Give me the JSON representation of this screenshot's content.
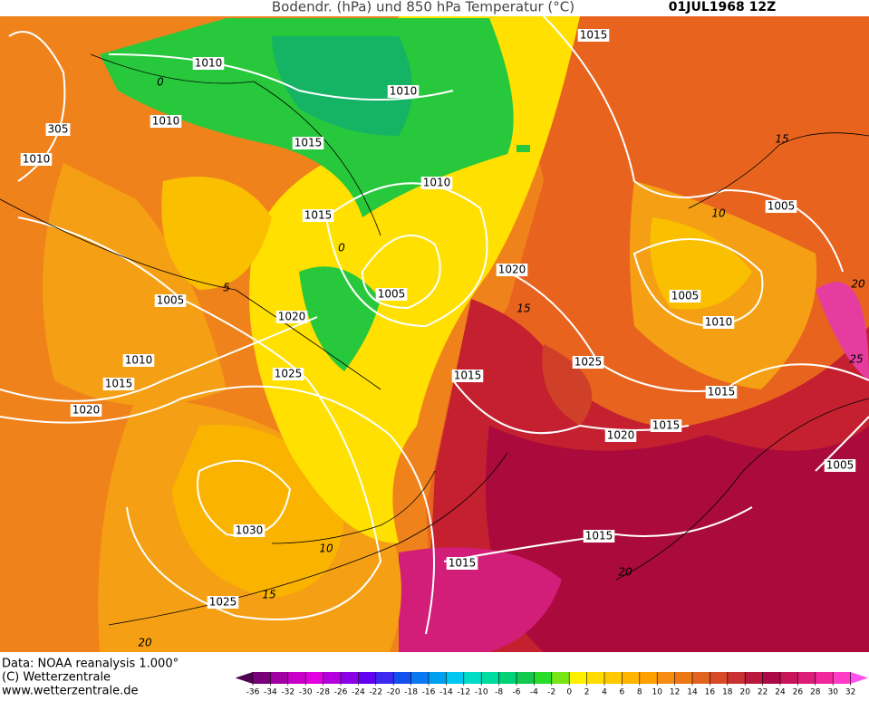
{
  "header": {
    "title": "Bodendr. (hPa) und 850 hPa Temperatur (°C)",
    "date": "01JUL1968 12Z"
  },
  "isobar_labels": [
    "1015",
    "1010",
    "1010",
    "1010",
    "305",
    "1010",
    "1015",
    "1010",
    "1015",
    "1005",
    "1020",
    "1005",
    "1005",
    "1005",
    "1020",
    "1010",
    "1010",
    "1025",
    "1025",
    "1015",
    "1015",
    "1015",
    "1020",
    "1015",
    "1020",
    "1005",
    "1030",
    "1015",
    "1015",
    "1025"
  ],
  "temperature_labels": [
    "5",
    "15",
    "10",
    "10",
    "15",
    "20",
    "20",
    "15",
    "20",
    "25",
    "0",
    "0"
  ],
  "credits": [
    "Data: NOAA reanalysis 1.000°",
    "(C) Wetterzentrale",
    "www.wetterzentrale.de"
  ],
  "colorbar": {
    "ticks": [
      -36,
      -34,
      -32,
      -30,
      -28,
      -26,
      -24,
      -22,
      -20,
      -18,
      -16,
      -14,
      -12,
      -10,
      -8,
      -6,
      -4,
      -2,
      0,
      2,
      4,
      6,
      8,
      10,
      12,
      14,
      16,
      18,
      20,
      22,
      24,
      26,
      28,
      30,
      32
    ],
    "colors": [
      "#500050",
      "#780078",
      "#a000a0",
      "#c800c8",
      "#e000e0",
      "#b400dc",
      "#8c00e6",
      "#6400f0",
      "#3c28f0",
      "#1450f0",
      "#0a78f0",
      "#00a0f0",
      "#00c8f0",
      "#00dcc8",
      "#00dca0",
      "#00d278",
      "#14c850",
      "#28dc28",
      "#78e614",
      "#fff000",
      "#ffdc00",
      "#ffc800",
      "#ffb400",
      "#ffa000",
      "#f58c14",
      "#eb7814",
      "#e1641e",
      "#d74b28",
      "#c83232",
      "#b9193c",
      "#aa0a46",
      "#c8145a",
      "#dc1e78",
      "#f0289b",
      "#ff3cc8",
      "#ff50f0"
    ]
  }
}
